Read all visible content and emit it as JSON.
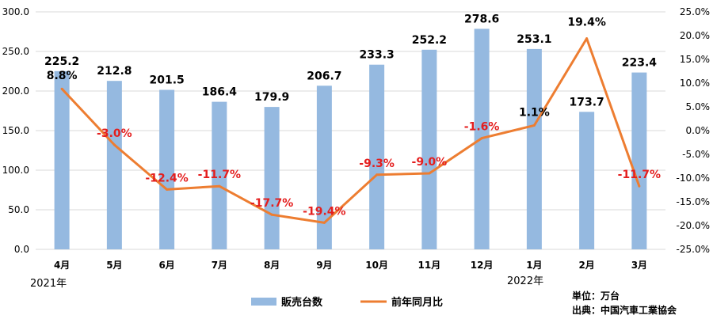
{
  "chart_data": {
    "type": "bar+line",
    "categories": [
      "4月",
      "5月",
      "6月",
      "7月",
      "8月",
      "9月",
      "10月",
      "11月",
      "12月",
      "1月",
      "2月",
      "3月"
    ],
    "year_labels": [
      "2021年",
      "2022年"
    ],
    "series": [
      {
        "name": "販売台数",
        "type": "bar",
        "axis": "left",
        "values": [
          225.2,
          212.8,
          201.5,
          186.4,
          179.9,
          206.7,
          233.3,
          252.2,
          278.6,
          253.1,
          173.7,
          223.4
        ],
        "labels": [
          "225.2",
          "212.8",
          "201.5",
          "186.4",
          "179.9",
          "206.7",
          "233.3",
          "252.2",
          "278.6",
          "253.1",
          "173.7",
          "223.4"
        ]
      },
      {
        "name": "前年同月比",
        "type": "line",
        "axis": "right",
        "values": [
          8.8,
          -3.0,
          -12.4,
          -11.7,
          -17.7,
          -19.4,
          -9.3,
          -9.0,
          -1.6,
          1.1,
          19.4,
          -11.7
        ],
        "labels": [
          "8.8%",
          "-3.0%",
          "-12.4%",
          "-11.7%",
          "-17.7%",
          "-19.4%",
          "-9.3%",
          "-9.0%",
          "-1.6%",
          "1.1%",
          "19.4%",
          "-11.7%"
        ]
      }
    ],
    "y_left": {
      "min": 0,
      "max": 300,
      "ticks": [
        "0.0",
        "50.0",
        "100.0",
        "150.0",
        "200.0",
        "250.0",
        "300.0"
      ]
    },
    "y_right": {
      "min": -25,
      "max": 25,
      "ticks": [
        "-25.0%",
        "-20.0%",
        "-15.0%",
        "-10.0%",
        "-5.0%",
        "0.0%",
        "5.0%",
        "10.0%",
        "15.0%",
        "20.0%",
        "25.0%"
      ]
    },
    "grid": "horizontal",
    "legend_position": "bottom",
    "notes": [
      "単位：万台",
      "出典：中国汽車工業協会"
    ]
  },
  "colors": {
    "bar": "#95b9e0",
    "line": "#ed7d31",
    "negative_label": "#e41e1e",
    "positive_label": "#000000",
    "grid": "#d9d9d9"
  }
}
